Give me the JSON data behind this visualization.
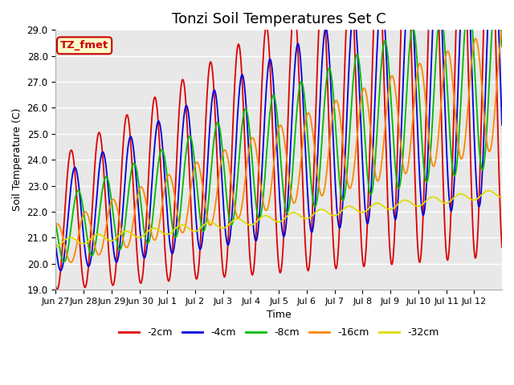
{
  "title": "Tonzi Soil Temperatures Set C",
  "xlabel": "Time",
  "ylabel": "Soil Temperature (C)",
  "ylim": [
    19.0,
    29.0
  ],
  "yticks": [
    19.0,
    20.0,
    21.0,
    22.0,
    23.0,
    24.0,
    25.0,
    26.0,
    27.0,
    28.0,
    29.0
  ],
  "xtick_labels": [
    "Jun 27",
    "Jun 28",
    "Jun 29",
    "Jun 30",
    "Jul 1",
    "Jul 2",
    "Jul 3",
    "Jul 4",
    "Jul 5",
    "Jul 6",
    "Jul 7",
    "Jul 8",
    "Jul 9",
    "Jul 10",
    "Jul 11",
    "Jul 12"
  ],
  "legend_labels": [
    "-2cm",
    "-4cm",
    "-8cm",
    "-16cm",
    "-32cm"
  ],
  "legend_colors": [
    "#dd0000",
    "#0000dd",
    "#00bb00",
    "#ff8800",
    "#dddd00"
  ],
  "annotation_text": "TZ_fmet",
  "annotation_bg": "#ffffcc",
  "annotation_border": "#cc0000",
  "plot_bg": "#e8e8e8",
  "fig_bg": "#ffffff",
  "title_fontsize": 13,
  "label_fontsize": 9,
  "tick_fontsize": 8.5,
  "grid_color": "#ffffff",
  "line_width": 1.3
}
